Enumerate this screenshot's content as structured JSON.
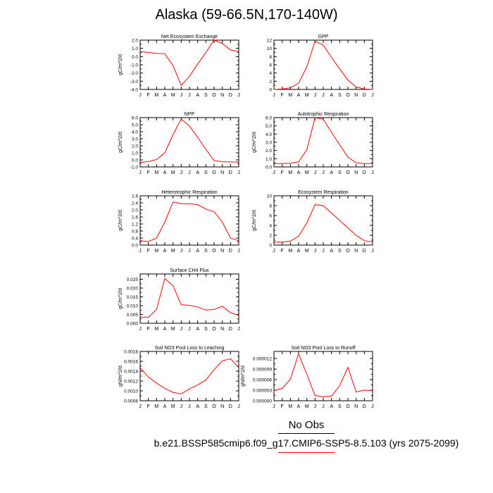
{
  "title": "Alaska (59-66.5N,170-140W)",
  "legend": {
    "obs_label": "No Obs",
    "case_label": "b.e21.BSSP585cmip6.f09_g17.CMIP6-SSP5-8.5.103 (yrs 2075-2099)"
  },
  "colors": {
    "line": "#ff0000",
    "axis": "#000000"
  },
  "chart_data": [
    {
      "type": "line",
      "title": "Net Ecosystem Exchange",
      "ylabel": "gC/m^2/d",
      "x": [
        "J",
        "F",
        "M",
        "A",
        "M",
        "J",
        "J",
        "A",
        "S",
        "O",
        "N",
        "D",
        "J"
      ],
      "ylim": [
        -4.0,
        2.0
      ],
      "yticks": [
        -4.0,
        -3.0,
        -2.0,
        -1.0,
        0.0,
        1.0,
        2.0
      ],
      "ytick_labels": [
        "-4.0",
        "-3.0",
        "-2.0",
        "-1.0",
        "0.0",
        "1.0",
        "2.0"
      ],
      "series": [
        {
          "values": [
            0.6,
            0.5,
            0.4,
            0.35,
            -1.1,
            -3.5,
            -2.4,
            -0.9,
            0.5,
            2.0,
            1.6,
            0.8,
            0.6
          ]
        }
      ]
    },
    {
      "type": "line",
      "title": "GPP",
      "ylabel": "",
      "x": [
        "J",
        "F",
        "M",
        "A",
        "M",
        "J",
        "J",
        "A",
        "S",
        "O",
        "N",
        "D",
        "J"
      ],
      "ylim": [
        0,
        12
      ],
      "yticks": [
        0,
        2,
        4,
        6,
        8,
        10,
        12
      ],
      "ytick_labels": [
        "0",
        "2",
        "4",
        "6",
        "8",
        "10",
        "12"
      ],
      "series": [
        {
          "values": [
            0.0,
            0.1,
            0.4,
            1.5,
            5.5,
            11.8,
            10.8,
            7.8,
            5.0,
            2.3,
            0.6,
            0.1,
            0.0
          ]
        }
      ]
    },
    {
      "type": "line",
      "title": "NPP",
      "ylabel": "gC/m^2/d",
      "x": [
        "J",
        "F",
        "M",
        "A",
        "M",
        "J",
        "J",
        "A",
        "S",
        "O",
        "N",
        "D",
        "J"
      ],
      "ylim": [
        -1.0,
        6.0
      ],
      "yticks": [
        -1.0,
        0.0,
        1.0,
        2.0,
        3.0,
        4.0,
        5.0,
        6.0
      ],
      "ytick_labels": [
        "-1.0",
        "0.0",
        "1.0",
        "2.0",
        "3.0",
        "4.0",
        "5.0",
        "6.0"
      ],
      "series": [
        {
          "values": [
            -0.35,
            -0.25,
            0.05,
            1.0,
            3.6,
            5.8,
            4.8,
            3.2,
            1.5,
            -0.1,
            -0.25,
            -0.3,
            -0.3
          ]
        }
      ]
    },
    {
      "type": "line",
      "title": "Autotrophic Respiration",
      "ylabel": "gC/m^2/d",
      "x": [
        "J",
        "F",
        "M",
        "A",
        "M",
        "J",
        "J",
        "A",
        "S",
        "O",
        "N",
        "D",
        "J"
      ],
      "ylim": [
        0.0,
        6.0
      ],
      "yticks": [
        0.0,
        1.0,
        2.0,
        3.0,
        4.0,
        5.0,
        6.0
      ],
      "ytick_labels": [
        "0.0",
        "1.0",
        "2.0",
        "3.0",
        "4.0",
        "5.0",
        "6.0"
      ],
      "series": [
        {
          "values": [
            0.4,
            0.4,
            0.45,
            0.6,
            2.1,
            6.0,
            5.8,
            4.2,
            2.7,
            1.2,
            0.5,
            0.4,
            0.4
          ]
        }
      ]
    },
    {
      "type": "line",
      "title": "Heterotrophic Respiration",
      "ylabel": "gC/m^2/d",
      "x": [
        "J",
        "F",
        "M",
        "A",
        "M",
        "J",
        "J",
        "A",
        "S",
        "O",
        "N",
        "D",
        "J"
      ],
      "ylim": [
        0.0,
        2.8
      ],
      "yticks": [
        0.0,
        0.4,
        0.8,
        1.2,
        1.6,
        2.0,
        2.4,
        2.8
      ],
      "ytick_labels": [
        "0.0",
        "0.4",
        "0.8",
        "1.2",
        "1.6",
        "2.0",
        "2.4",
        "2.8"
      ],
      "series": [
        {
          "values": [
            0.25,
            0.2,
            0.4,
            1.3,
            2.45,
            2.35,
            2.35,
            2.3,
            2.05,
            1.9,
            1.3,
            0.4,
            0.25
          ]
        }
      ]
    },
    {
      "type": "line",
      "title": "Ecosystem Respiration",
      "ylabel": "gC/m^2/d",
      "x": [
        "J",
        "F",
        "M",
        "A",
        "M",
        "J",
        "J",
        "A",
        "S",
        "O",
        "N",
        "D",
        "J"
      ],
      "ylim": [
        0,
        10
      ],
      "yticks": [
        0,
        2,
        4,
        6,
        8,
        10
      ],
      "ytick_labels": [
        "0",
        "2",
        "4",
        "6",
        "8",
        "10"
      ],
      "series": [
        {
          "values": [
            0.6,
            0.6,
            0.8,
            1.8,
            4.5,
            8.2,
            8.0,
            6.5,
            5.0,
            3.5,
            2.0,
            0.9,
            0.6
          ]
        }
      ]
    },
    {
      "type": "line",
      "title": "Surface CH4 Flux",
      "ylabel": "gC/m^2/d",
      "x": [
        "J",
        "F",
        "M",
        "A",
        "M",
        "J",
        "J",
        "A",
        "S",
        "O",
        "N",
        "D",
        "J"
      ],
      "ylim": [
        0.0,
        0.028
      ],
      "yticks": [
        0.0,
        0.005,
        0.01,
        0.015,
        0.02,
        0.025
      ],
      "ytick_labels": [
        "0.000",
        "0.005",
        "0.010",
        "0.015",
        "0.020",
        "0.025"
      ],
      "series": [
        {
          "values": [
            0.0035,
            0.0034,
            0.0078,
            0.0255,
            0.0213,
            0.0105,
            0.0102,
            0.0093,
            0.0075,
            0.0078,
            0.0097,
            0.006,
            0.0045
          ]
        }
      ]
    },
    {
      "type": "line",
      "title": "Soil NO3 Pool Loss to Leaching",
      "ylabel": "gN/m^2/d",
      "x": [
        "J",
        "F",
        "M",
        "A",
        "M",
        "J",
        "J",
        "A",
        "S",
        "O",
        "N",
        "D",
        "J"
      ],
      "ylim": [
        0.0008,
        0.0018
      ],
      "yticks": [
        0.0008,
        0.001,
        0.0012,
        0.0014,
        0.0016,
        0.0018
      ],
      "ytick_labels": [
        "0.0008",
        "0.0010",
        "0.0012",
        "0.0014",
        "0.0016",
        "0.0018"
      ],
      "series": [
        {
          "values": [
            0.00147,
            0.00128,
            0.00116,
            0.00105,
            0.00097,
            0.00094,
            0.00104,
            0.00112,
            0.00122,
            0.00143,
            0.00161,
            0.00165,
            0.00147
          ]
        }
      ]
    },
    {
      "type": "line",
      "title": "Soil NO3 Pool Loss to Runoff",
      "ylabel": "gN/m^2/d",
      "x": [
        "J",
        "F",
        "M",
        "A",
        "M",
        "J",
        "J",
        "A",
        "S",
        "O",
        "N",
        "D",
        "J"
      ],
      "ylim": [
        0.0,
        1.4e-05
      ],
      "yticks": [
        0.0,
        3e-06,
        6e-06,
        9e-06,
        1.2e-05
      ],
      "ytick_labels": [
        "0.000000",
        "0.000003",
        "0.000006",
        "0.000009",
        "0.000012"
      ],
      "series": [
        {
          "values": [
            2.9e-06,
            3.5e-06,
            6.1e-06,
            1.33e-05,
            7.5e-06,
            1.5e-06,
            1.1e-06,
            1.3e-06,
            4.3e-06,
            9.5e-06,
            2.5e-06,
            3e-06,
            2.9e-06
          ]
        }
      ]
    }
  ]
}
